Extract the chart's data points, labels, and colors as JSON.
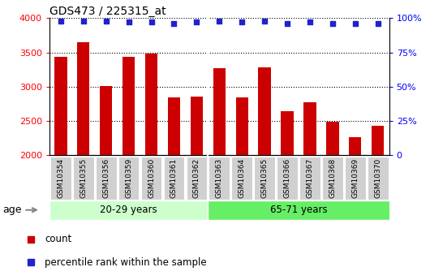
{
  "title": "GDS473 / 225315_at",
  "samples": [
    "GSM10354",
    "GSM10355",
    "GSM10356",
    "GSM10359",
    "GSM10360",
    "GSM10361",
    "GSM10362",
    "GSM10363",
    "GSM10364",
    "GSM10365",
    "GSM10366",
    "GSM10367",
    "GSM10368",
    "GSM10369",
    "GSM10370"
  ],
  "counts": [
    3440,
    3650,
    3010,
    3440,
    3490,
    2840,
    2860,
    3270,
    2840,
    3280,
    2640,
    2770,
    2490,
    2270,
    2430
  ],
  "percentiles": [
    98,
    98,
    98,
    97,
    97,
    96,
    97,
    98,
    97,
    98,
    96,
    97,
    96,
    96,
    96
  ],
  "group1_label": "20-29 years",
  "group1_count": 7,
  "group2_label": "65-71 years",
  "group2_count": 8,
  "age_label": "age",
  "ylim_left": [
    2000,
    4000
  ],
  "yticks_left": [
    2000,
    2500,
    3000,
    3500,
    4000
  ],
  "ylim_right": [
    0,
    100
  ],
  "yticks_right": [
    0,
    25,
    50,
    75,
    100
  ],
  "bar_color": "#cc0000",
  "dot_color": "#2222cc",
  "bg_plot": "#ffffff",
  "bg_xtick": "#d0d0d0",
  "bg_group1": "#ccffcc",
  "bg_group2": "#66ee66",
  "legend_count_label": "count",
  "legend_pct_label": "percentile rank within the sample",
  "bar_width": 0.55
}
